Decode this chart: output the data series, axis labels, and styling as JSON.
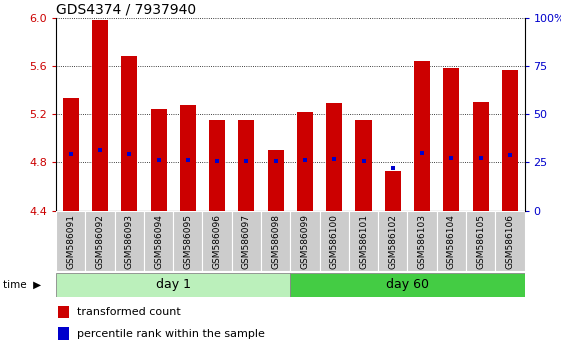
{
  "title": "GDS4374 / 7937940",
  "samples": [
    "GSM586091",
    "GSM586092",
    "GSM586093",
    "GSM586094",
    "GSM586095",
    "GSM586096",
    "GSM586097",
    "GSM586098",
    "GSM586099",
    "GSM586100",
    "GSM586101",
    "GSM586102",
    "GSM586103",
    "GSM586104",
    "GSM586105",
    "GSM586106"
  ],
  "bar_tops": [
    5.33,
    5.98,
    5.68,
    5.24,
    5.28,
    5.15,
    5.15,
    4.9,
    5.22,
    5.29,
    5.15,
    4.73,
    5.64,
    5.58,
    5.3,
    5.57
  ],
  "bar_bottom": 4.4,
  "percentile_values": [
    4.87,
    4.9,
    4.87,
    4.82,
    4.82,
    4.81,
    4.81,
    4.81,
    4.82,
    4.83,
    4.81,
    4.75,
    4.88,
    4.84,
    4.84,
    4.86
  ],
  "ylim": [
    4.4,
    6.0
  ],
  "yticks_left": [
    4.4,
    4.8,
    5.2,
    5.6,
    6.0
  ],
  "yticks_right": [
    0,
    25,
    50,
    75,
    100
  ],
  "bar_color": "#cc0000",
  "percentile_color": "#0000cc",
  "day1_color": "#bbf0bb",
  "day60_color": "#44cc44",
  "day1_samples": 8,
  "day60_samples": 8,
  "label_bg_color": "#cccccc",
  "bar_width": 0.55,
  "title_fontsize": 10,
  "axis_fontsize": 8,
  "label_fontsize": 6.5
}
